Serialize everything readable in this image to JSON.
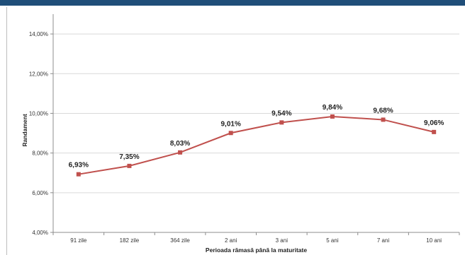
{
  "colors": {
    "series": "#c0504d",
    "grid": "#d9d9d9",
    "axis": "#8c8c8c",
    "top_bar": "#1f4e79"
  },
  "chart_data": {
    "type": "line",
    "title": "",
    "xlabel": "Perioada rămasă până la maturitate",
    "ylabel": "Randament",
    "categories": [
      "91 zile",
      "182 zile",
      "364 zile",
      "2 ani",
      "3 ani",
      "5 ani",
      "7 ani",
      "10 ani"
    ],
    "y_tick_labels": [
      "4,00%",
      "6,00%",
      "8,00%",
      "10,00%",
      "12,00%",
      "14,00%"
    ],
    "y_ticks": [
      4,
      6,
      8,
      10,
      12,
      14
    ],
    "ylim": [
      4,
      15
    ],
    "grid": true,
    "legend": "none",
    "series": [
      {
        "values": [
          6.93,
          7.35,
          8.03,
          9.01,
          9.54,
          9.84,
          9.68,
          9.06
        ],
        "data_labels": [
          "6,93%",
          "7,35%",
          "8,03%",
          "9,01%",
          "9,54%",
          "9,84%",
          "9,68%",
          "9,06%"
        ]
      }
    ]
  }
}
